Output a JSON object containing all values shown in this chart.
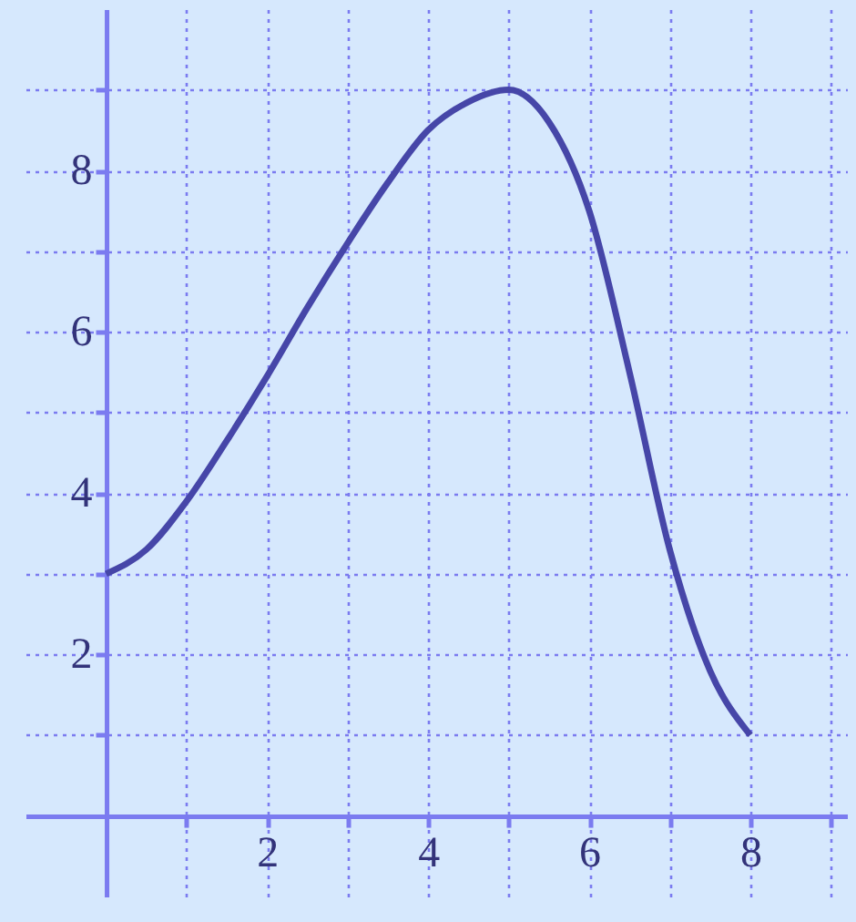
{
  "chart_data": {
    "type": "line",
    "x": [
      0,
      0.5,
      1,
      1.5,
      2,
      2.5,
      3,
      3.5,
      4,
      4.5,
      5,
      5.5,
      6,
      6.5,
      7,
      7.5,
      8
    ],
    "series": [
      {
        "color": "#4646a8",
        "values": [
          3,
          3.3,
          3.9,
          4.65,
          5.45,
          6.3,
          7.1,
          7.85,
          8.5,
          8.85,
          9,
          8.6,
          7.5,
          5.5,
          3.3,
          1.8,
          1
        ]
      }
    ],
    "xlim": [
      -1,
      9.2
    ],
    "ylim": [
      -1,
      10
    ],
    "xticks": [
      {
        "value": 1,
        "label": null
      },
      2,
      {
        "value": 3,
        "label": null
      },
      4,
      {
        "value": 5,
        "label": null
      },
      6,
      {
        "value": 7,
        "label": null
      },
      8,
      {
        "value": 9,
        "label": null
      }
    ],
    "yticks": [
      {
        "value": 1,
        "label": null
      },
      2,
      {
        "value": 3,
        "label": null
      },
      4,
      {
        "value": 5,
        "label": null
      },
      6,
      {
        "value": 7,
        "label": null
      },
      8,
      {
        "value": 9,
        "label": null
      }
    ],
    "grid": true,
    "marker": "none",
    "line_style": "solid"
  }
}
